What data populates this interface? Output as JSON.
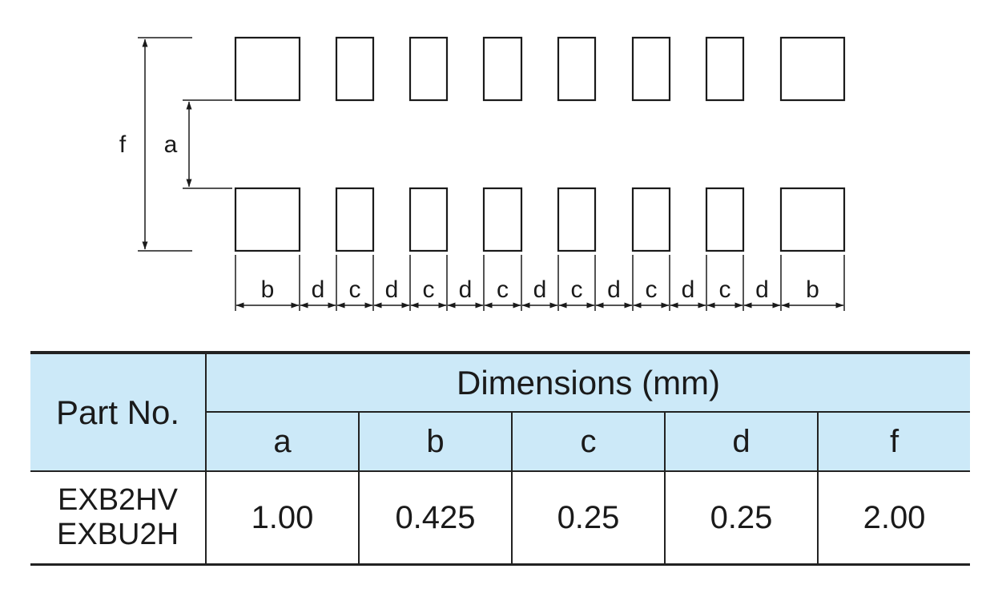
{
  "diagram": {
    "dimension_labels": {
      "f": "f",
      "a": "a",
      "bottom": [
        "b",
        "d",
        "c",
        "d",
        "c",
        "d",
        "c",
        "d",
        "c",
        "d",
        "c",
        "d",
        "c",
        "d",
        "b"
      ]
    },
    "pad_rows": 2,
    "pads_per_row": 8
  },
  "table": {
    "part_header": "Part No.",
    "dimensions_header": "Dimensions (mm)",
    "columns": [
      "a",
      "b",
      "c",
      "d",
      "f"
    ],
    "rows": [
      {
        "part_lines": [
          "EXB2HV",
          "EXBU2H"
        ],
        "values": [
          "1.00",
          "0.425",
          "0.25",
          "0.25",
          "2.00"
        ]
      }
    ]
  },
  "colors": {
    "header_fill": "#cce9f8",
    "line": "#222222"
  }
}
